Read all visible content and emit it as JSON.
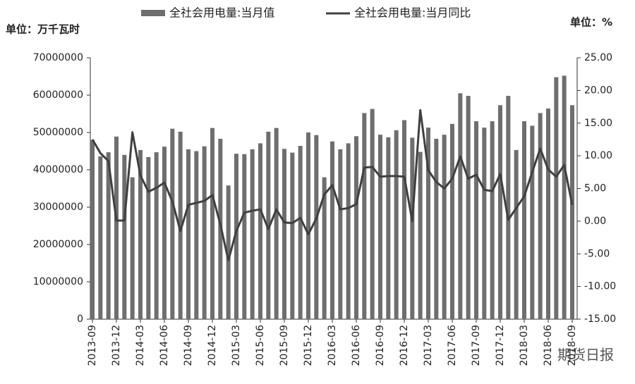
{
  "chart_data": {
    "type": "bar-line",
    "y_label": "单位：万千瓦时",
    "y2_label": "单位：%",
    "watermark": "期货日报",
    "categories": [
      "2013-09",
      null,
      null,
      "2013-12",
      null,
      null,
      "2014-03",
      null,
      null,
      "2014-06",
      null,
      null,
      "2014-09",
      null,
      null,
      "2014-12",
      null,
      null,
      "2015-03",
      null,
      null,
      "2015-06",
      null,
      null,
      "2015-09",
      null,
      null,
      "2015-12",
      null,
      null,
      "2016-03",
      null,
      null,
      "2016-06",
      null,
      null,
      "2016-09",
      null,
      null,
      "2016-12",
      null,
      null,
      "2017-03",
      null,
      null,
      "2017-06",
      null,
      null,
      "2017-09",
      null,
      null,
      "2017-12",
      null,
      null,
      "2018-03",
      null,
      null,
      "2018-06",
      null,
      null,
      "2018-09"
    ],
    "series": [
      {
        "name": "全社会用电量:当月值",
        "color": "#6e6e6e",
        "type": "bar",
        "values": [
          48000000,
          43600000,
          44700000,
          48900000,
          44000000,
          38000000,
          45300000,
          43400000,
          44700000,
          46200000,
          51000000,
          50200000,
          45500000,
          45000000,
          46300000,
          51200000,
          48300000,
          35800000,
          44300000,
          44200000,
          45500000,
          47100000,
          50200000,
          51200000,
          45600000,
          44600000,
          46400000,
          50000000,
          49300000,
          38000000,
          47600000,
          45500000,
          47100000,
          49000000,
          55200000,
          56300000,
          49400000,
          48700000,
          50600000,
          53300000,
          48600000,
          44800000,
          51300000,
          48300000,
          49400000,
          52300000,
          60500000,
          59800000,
          53000000,
          51300000,
          53000000,
          57300000,
          59800000,
          45300000,
          53000000,
          51800000,
          55200000,
          56400000,
          64800000,
          65200000,
          57300000
        ]
      },
      {
        "name": "全社会用电量:当月同比",
        "color": "#404040",
        "type": "line",
        "axis": "y2",
        "values": [
          12.5,
          10.4,
          9.2,
          0.1,
          0.1,
          13.6,
          7,
          4.5,
          5.1,
          5.9,
          3,
          -1.5,
          2.5,
          2.8,
          3.1,
          4,
          -0.5,
          -6,
          -1.5,
          1.3,
          1.6,
          1.8,
          -1.2,
          1.8,
          -0.2,
          -0.3,
          0.5,
          -2,
          0.4,
          4.1,
          5.5,
          1.8,
          2,
          2.6,
          8.2,
          8.3,
          6.8,
          6.9,
          6.9,
          6.8,
          0,
          17,
          7.8,
          6,
          5,
          6.5,
          9.9,
          6.5,
          7.1,
          4.8,
          4.6,
          7.2,
          0.2,
          2,
          3.8,
          7.5,
          11.1,
          7.9,
          6.8,
          8.6,
          2.5
        ]
      }
    ],
    "ylim": [
      0,
      70000000
    ],
    "yticks": [
      0,
      10000000,
      20000000,
      30000000,
      40000000,
      50000000,
      60000000,
      70000000
    ],
    "y2lim": [
      -15,
      25
    ],
    "y2ticks": [
      {
        "value": -15,
        "label": "-15.00"
      },
      {
        "value": -10,
        "label": "-10.00"
      },
      {
        "value": -5,
        "label": "-5.00"
      },
      {
        "value": 0,
        "label": "0.00"
      },
      {
        "value": 5,
        "label": "5.00"
      },
      {
        "value": 10,
        "label": "10.00"
      },
      {
        "value": 15,
        "label": "15.00"
      },
      {
        "value": 20,
        "label": "20.00"
      },
      {
        "value": 25,
        "label": "25.00"
      }
    ]
  }
}
